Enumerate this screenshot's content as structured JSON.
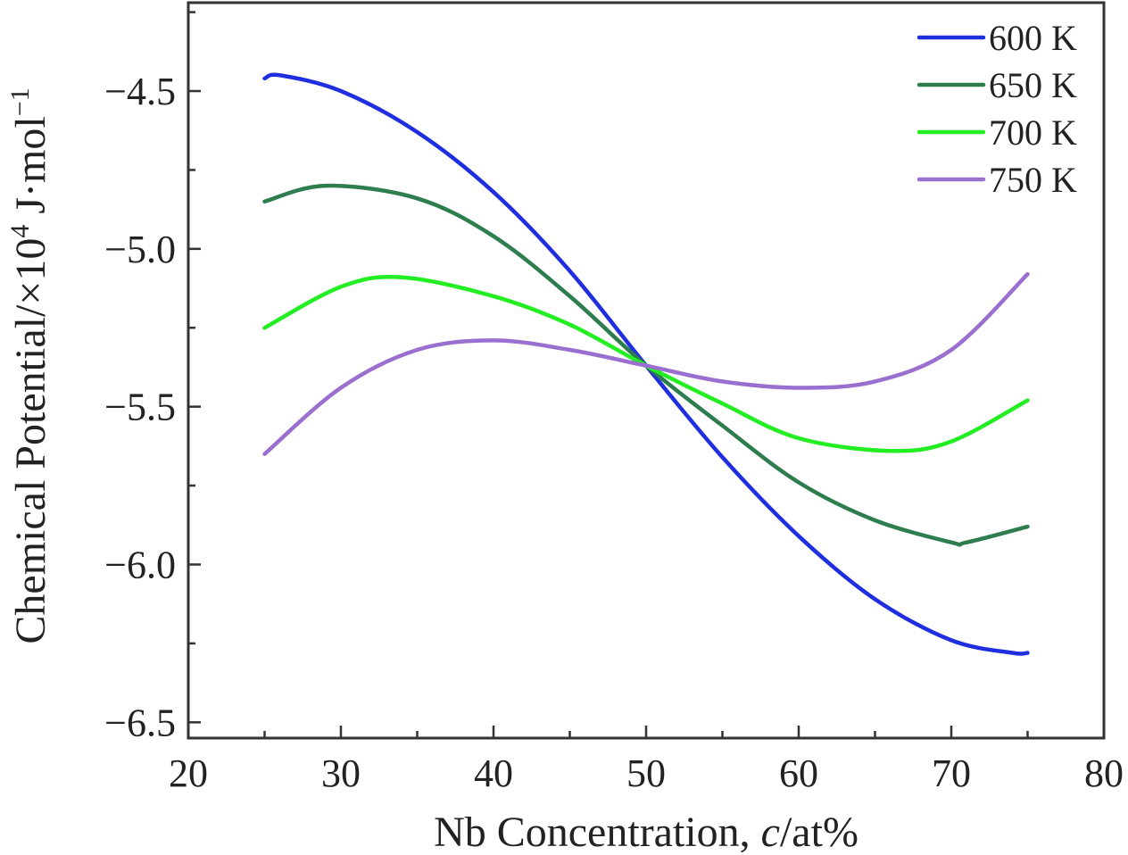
{
  "chart_data": {
    "type": "line",
    "title": "",
    "xlabel": {
      "prefix": "Nb Concentration, ",
      "italic": "c",
      "suffix": "/at%"
    },
    "ylabel": {
      "base": "Chemical Potential/×10",
      "exponent": "4",
      "unit": " J·mol",
      "unit_exponent": "−1"
    },
    "xlim": [
      20,
      80
    ],
    "ylim": [
      -6.55,
      -4.22
    ],
    "x_ticks": [
      20,
      30,
      40,
      50,
      60,
      70,
      80
    ],
    "x_tick_labels": [
      "20",
      "30",
      "40",
      "50",
      "60",
      "70",
      "80"
    ],
    "y_ticks": [
      -6.5,
      -6.0,
      -5.5,
      -5.0,
      -4.5
    ],
    "y_tick_labels": [
      "−6.5",
      "−6.0",
      "−5.5",
      "−5.0",
      "−4.5"
    ],
    "grid": false,
    "legend_position": "top-right",
    "series": [
      {
        "name": "600 K",
        "color": "#1f2fe0",
        "x": [
          25,
          26,
          30,
          35,
          40,
          45,
          50,
          55,
          60,
          65,
          70,
          74,
          75
        ],
        "y": [
          -4.46,
          -4.45,
          -4.5,
          -4.63,
          -4.82,
          -5.07,
          -5.37,
          -5.66,
          -5.91,
          -6.11,
          -6.24,
          -6.28,
          -6.28
        ]
      },
      {
        "name": "650 K",
        "color": "#2e7d4f",
        "x": [
          25,
          29,
          35,
          40,
          45,
          50,
          55,
          60,
          65,
          70,
          71,
          75
        ],
        "y": [
          -4.85,
          -4.8,
          -4.84,
          -4.96,
          -5.15,
          -5.37,
          -5.56,
          -5.74,
          -5.86,
          -5.93,
          -5.93,
          -5.88
        ]
      },
      {
        "name": "700 K",
        "color": "#22ee22",
        "x": [
          25,
          30,
          34,
          40,
          45,
          50,
          55,
          60,
          66,
          70,
          75
        ],
        "y": [
          -5.25,
          -5.12,
          -5.09,
          -5.15,
          -5.24,
          -5.37,
          -5.49,
          -5.6,
          -5.64,
          -5.61,
          -5.48
        ]
      },
      {
        "name": "750 K",
        "color": "#9a6fd0",
        "x": [
          25,
          30,
          35,
          40,
          45,
          50,
          55,
          60,
          65,
          70,
          75
        ],
        "y": [
          -5.65,
          -5.44,
          -5.32,
          -5.29,
          -5.32,
          -5.37,
          -5.42,
          -5.44,
          -5.42,
          -5.32,
          -5.08
        ]
      }
    ]
  }
}
